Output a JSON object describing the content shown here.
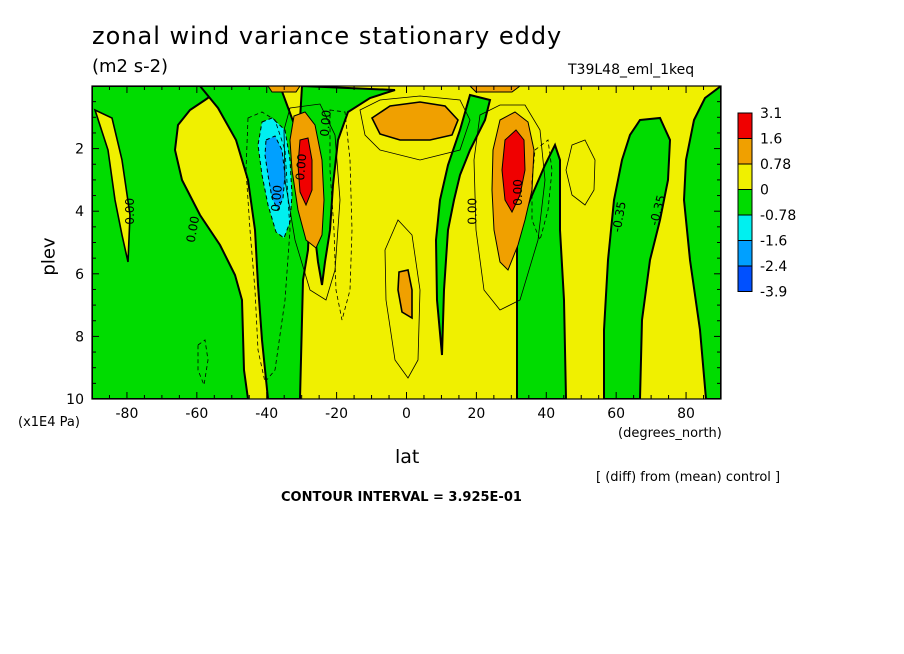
{
  "chart_data": {
    "type": "heatmap",
    "title": "zonal wind variance stationary eddy",
    "units": "(m2 s-2)",
    "run_label": "T39L48_eml_1keq",
    "xlabel": "lat",
    "xunits": "(degrees_north)",
    "ylabel": "plev",
    "yunits": "(x1E4 Pa)",
    "xlim": [
      -90,
      90
    ],
    "ylim": [
      10,
      0
    ],
    "x_ticks": [
      -80,
      -60,
      -40,
      -20,
      0,
      20,
      40,
      60,
      80
    ],
    "y_ticks": [
      2,
      4,
      6,
      8,
      10
    ],
    "colorbar_levels": [
      "3.1",
      "1.6",
      "0.78",
      "0",
      "-0.78",
      "-1.6",
      "-2.4",
      "-3.9"
    ],
    "colorbar_colors": [
      "#f00000",
      "#f0a000",
      "#f0f000",
      "#00dc00",
      "#00f0f0",
      "#00a0ff",
      "#0050ff"
    ],
    "contour_labels": [
      "0.00",
      "0.00",
      "0.00",
      "0.00",
      "0.00",
      "0.00",
      "0.00",
      "-0.35",
      "-0.35"
    ],
    "features": [
      {
        "kind": "max",
        "lat": 30,
        "plev": 2.7,
        "value": 3.1
      },
      {
        "kind": "max",
        "lat": -29,
        "plev": 2.8,
        "value": 1.9
      },
      {
        "kind": "min",
        "lat": -38,
        "plev": 2.8,
        "value": -2.4
      },
      {
        "kind": "max",
        "lat": 5,
        "plev": 1.0,
        "value": 1.2
      },
      {
        "kind": "max",
        "lat": 0,
        "plev": 7.0,
        "value": 0.8
      }
    ],
    "footer_note": "[ (diff) from (mean) control ]",
    "contour_interval": "CONTOUR INTERVAL = 3.925E-01"
  }
}
